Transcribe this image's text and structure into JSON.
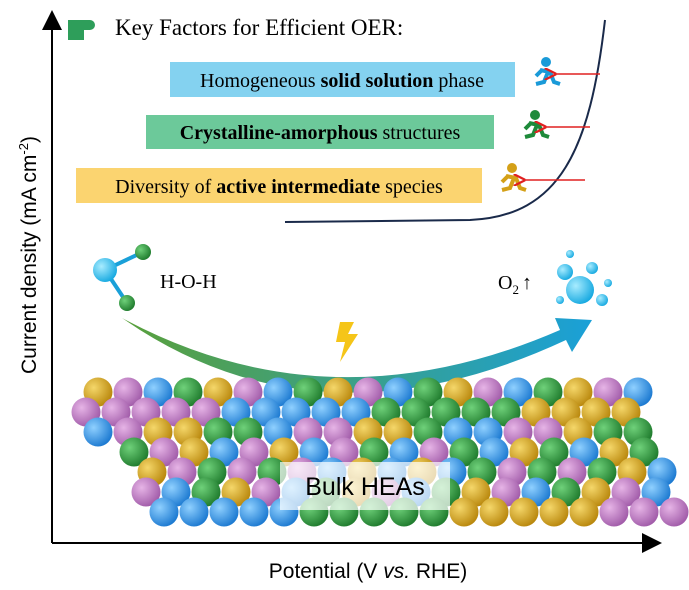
{
  "header": {
    "title": "Key Factors for Efficient OER:"
  },
  "factors": [
    {
      "parts": [
        {
          "text": "Homogeneous ",
          "bold": false
        },
        {
          "text": "solid solution",
          "bold": true
        },
        {
          "text": " phase",
          "bold": false
        }
      ]
    },
    {
      "parts": [
        {
          "text": "Crystalline-amorphous",
          "bold": true
        },
        {
          "text": " structures",
          "bold": false
        }
      ]
    },
    {
      "parts": [
        {
          "text": "Diversity of ",
          "bold": false
        },
        {
          "text": "active intermediate",
          "bold": true
        },
        {
          "text": " species",
          "bold": false
        }
      ]
    }
  ],
  "reactant": "H-O-H",
  "product": {
    "symbol": "O",
    "subscript": "2",
    "arrow": "↑"
  },
  "catalyst": "Bulk HEAs",
  "axes": {
    "y_label": {
      "main": "Current density (mA cm",
      "superscript": "-2",
      "end": ")"
    },
    "x_label": {
      "start": "Potential (V ",
      "italic": "vs.",
      "end": " RHE)"
    }
  }
}
